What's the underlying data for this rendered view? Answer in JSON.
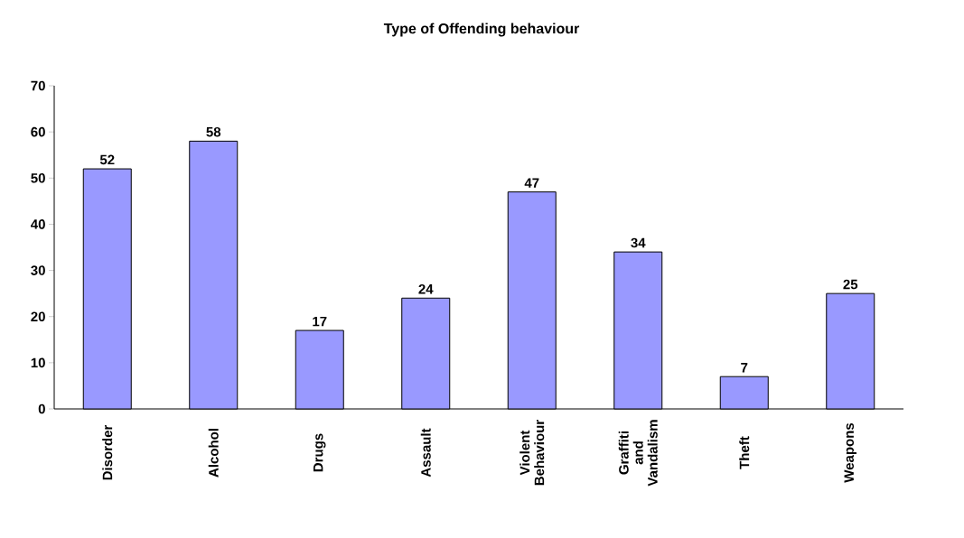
{
  "chart_data": {
    "type": "bar",
    "title": "Type of Offending behaviour",
    "categories": [
      "Disorder",
      "Alcohol",
      "Drugs",
      "Assault",
      "Violent Behaviour",
      "Graffiti and Vandalism",
      "Theft",
      "Weapons"
    ],
    "values": [
      52,
      58,
      17,
      24,
      47,
      34,
      7,
      25
    ],
    "color": "#9999ff",
    "ylim": [
      0,
      70
    ],
    "yticks": [
      0,
      10,
      20,
      30,
      40,
      50,
      60,
      70
    ],
    "data_labels": true,
    "grid": false
  }
}
